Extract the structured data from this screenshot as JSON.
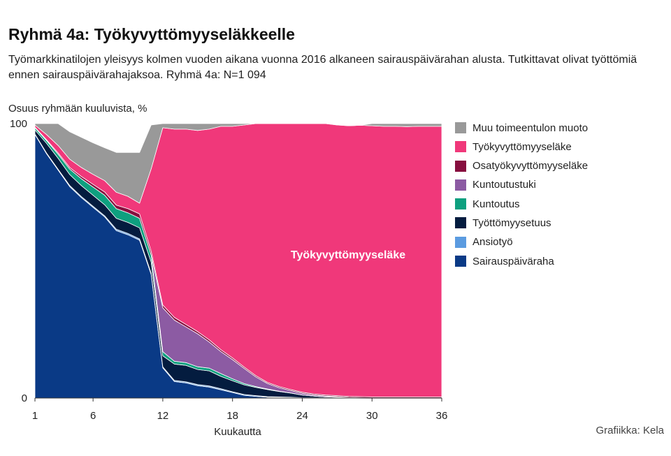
{
  "title": "Ryhmä 4a: Työkyvyttömyyseläkkeelle",
  "subtitle": "Työmarkkinatilojen yleisyys kolmen vuoden aikana vuonna 2016 alkaneen sairauspäivärahan alusta. Tutkittavat olivat työttömiä ennen sairauspäivärahajaksoa. Ryhmä 4a: N=1 094",
  "credit": "Grafiikka: Kela",
  "chart_data": {
    "type": "area",
    "stacked": true,
    "ylabel": "Osuus ryhmään kuuluvista, %",
    "xlabel": "Kuukautta",
    "xlim": [
      1,
      36
    ],
    "ylim": [
      0,
      100
    ],
    "x_ticks": [
      1,
      6,
      12,
      18,
      24,
      30,
      36
    ],
    "y_ticks": [
      0,
      100
    ],
    "legend_position": "right",
    "annotation": "Työkyvyttömyyseläke",
    "x": [
      1,
      2,
      3,
      4,
      5,
      6,
      7,
      8,
      9,
      10,
      11,
      12,
      13,
      14,
      15,
      16,
      17,
      18,
      19,
      20,
      21,
      22,
      23,
      24,
      25,
      26,
      27,
      28,
      29,
      30,
      31,
      32,
      33,
      34,
      35,
      36
    ],
    "series": [
      {
        "name": "Sairauspäiväraha",
        "color": "#0a3a86",
        "values": [
          96,
          89,
          83,
          77,
          73,
          69.5,
          66,
          61,
          59.5,
          57.5,
          45,
          11,
          6,
          5.5,
          4.5,
          4,
          3,
          2,
          1,
          0.6,
          0.3,
          0.2,
          0.1,
          0,
          0,
          0,
          0,
          0,
          0,
          0,
          0,
          0,
          0,
          0,
          0,
          0
        ]
      },
      {
        "name": "Ansiotyö",
        "color": "#5b9be0",
        "values": [
          0.2,
          0.3,
          0.3,
          0.4,
          0.4,
          0.4,
          0.4,
          0.5,
          0.5,
          0.5,
          0.5,
          0.4,
          0.4,
          0.4,
          0.4,
          0.4,
          0.4,
          0.3,
          0.3,
          0.3,
          0.2,
          0.2,
          0.2,
          0.1,
          0.1,
          0.1,
          0.1,
          0,
          0,
          0,
          0,
          0,
          0,
          0,
          0,
          0
        ]
      },
      {
        "name": "Työttömyysetuus",
        "color": "#041c3f",
        "values": [
          1.5,
          3.5,
          4,
          4,
          4,
          4,
          4,
          4,
          4,
          4,
          4,
          4,
          6,
          6,
          5.5,
          5.5,
          4.5,
          4,
          3.5,
          3,
          2.6,
          2,
          1.5,
          1,
          0.6,
          0.3,
          0.2,
          0.1,
          0,
          0,
          0,
          0,
          0,
          0,
          0,
          0
        ]
      },
      {
        "name": "Kuntoutus",
        "color": "#0ea07f",
        "values": [
          0.8,
          1,
          1.5,
          2,
          2.5,
          3,
          3.5,
          3.5,
          3.5,
          3.5,
          2.5,
          1.5,
          1,
          1,
          1,
          1,
          1,
          0.7,
          0.5,
          0.3,
          0.2,
          0.1,
          0.1,
          0,
          0,
          0,
          0,
          0,
          0,
          0,
          0,
          0,
          0,
          0,
          0,
          0
        ]
      },
      {
        "name": "Kuntoutustuki",
        "color": "#8c5ba3",
        "values": [
          0,
          0,
          0,
          0,
          0,
          0,
          0,
          0,
          0,
          0,
          0,
          16,
          15,
          13,
          12,
          9.5,
          8,
          7,
          5.5,
          3.5,
          2,
          1.3,
          0.8,
          0.6,
          0.4,
          0.3,
          0.2,
          0.1,
          0.1,
          0,
          0,
          0,
          0,
          0,
          0,
          0
        ]
      },
      {
        "name": "Osatyökyvyttömyyseläke",
        "color": "#870f3f",
        "values": [
          0.2,
          0.3,
          0.5,
          0.6,
          0.8,
          1,
          1.2,
          1.3,
          1.5,
          1.6,
          1.5,
          1,
          1,
          0.9,
          0.8,
          0.8,
          0.7,
          0.6,
          0.5,
          0.5,
          0.4,
          0.4,
          0.4,
          0.4,
          0.4,
          0.4,
          0.4,
          0.4,
          0.4,
          0.4,
          0.4,
          0.4,
          0.4,
          0.4,
          0.4,
          0.4
        ]
      },
      {
        "name": "Työkyvyttömyyseläke",
        "color": "#f0387a",
        "values": [
          0.8,
          1.9,
          2.7,
          3,
          3.3,
          3.6,
          4.1,
          4.7,
          4.5,
          3.9,
          30,
          64.6,
          68.6,
          71.2,
          73.3,
          76.8,
          81.4,
          84.4,
          88.2,
          91.8,
          94.3,
          95.8,
          96.9,
          97.9,
          98.5,
          98.9,
          98.6,
          98.6,
          98.9,
          98.8,
          98.6,
          98.6,
          98.5,
          98.6,
          98.6,
          98.6
        ]
      },
      {
        "name": "Muu toimeentulon muoto",
        "color": "#999999",
        "values": [
          0.5,
          4,
          8,
          10,
          11,
          11.5,
          12,
          14.5,
          16,
          18.5,
          16,
          1.5,
          2,
          2,
          2.5,
          2,
          1.5,
          1,
          0.5,
          0,
          0,
          0,
          0,
          0,
          0,
          0,
          0,
          0,
          0,
          0.8,
          1,
          1,
          1.1,
          1,
          1,
          1
        ]
      }
    ]
  }
}
